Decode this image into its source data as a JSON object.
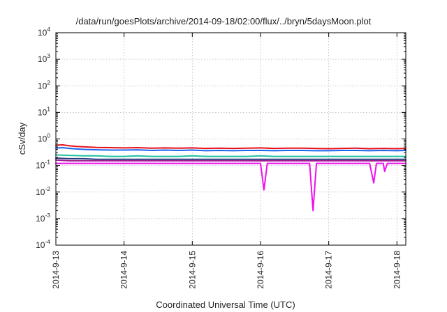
{
  "chart_data": {
    "type": "line",
    "title": "/data/run/goesPlots/archive/2014-09-18/02:00/flux/../bryn/5daysMoon.plot",
    "xlabel": "Coordinated Universal Time (UTC)",
    "ylabel": "cSv/day",
    "yscale": "log",
    "ylim": [
      0.0001,
      10000
    ],
    "xlim": [
      0,
      5.13
    ],
    "grid": true,
    "legend": "none",
    "y_ticks": [
      {
        "base": "10",
        "exp": "-4",
        "value": 0.0001
      },
      {
        "base": "10",
        "exp": "-3",
        "value": 0.001
      },
      {
        "base": "10",
        "exp": "-2",
        "value": 0.01
      },
      {
        "base": "10",
        "exp": "-1",
        "value": 0.1
      },
      {
        "base": "10",
        "exp": "0",
        "value": 1
      },
      {
        "base": "10",
        "exp": "1",
        "value": 10
      },
      {
        "base": "10",
        "exp": "2",
        "value": 100
      },
      {
        "base": "10",
        "exp": "3",
        "value": 1000
      },
      {
        "base": "10",
        "exp": "4",
        "value": 10000
      }
    ],
    "x_ticks": [
      {
        "label": "2014-9-13",
        "value": 0
      },
      {
        "label": "2014-9-14",
        "value": 1
      },
      {
        "label": "2014-9-15",
        "value": 2
      },
      {
        "label": "2014-9-16",
        "value": 3
      },
      {
        "label": "2014-9-17",
        "value": 4
      },
      {
        "label": "2014-9-18",
        "value": 5
      }
    ],
    "x_unit": "days since 2014-9-13 00:00 UTC",
    "series": [
      {
        "color": "#e8101a",
        "x": [
          0,
          0.1,
          0.2,
          0.3,
          0.45,
          0.6,
          0.8,
          1.0,
          1.2,
          1.4,
          1.6,
          1.8,
          2.0,
          2.2,
          2.4,
          2.6,
          2.8,
          3.0,
          3.2,
          3.4,
          3.6,
          3.8,
          4.0,
          4.2,
          4.4,
          4.6,
          4.8,
          5.0,
          5.13
        ],
        "y": [
          0.58,
          0.6,
          0.55,
          0.52,
          0.5,
          0.48,
          0.47,
          0.46,
          0.47,
          0.45,
          0.46,
          0.45,
          0.46,
          0.44,
          0.45,
          0.44,
          0.45,
          0.46,
          0.44,
          0.45,
          0.45,
          0.44,
          0.43,
          0.44,
          0.45,
          0.43,
          0.44,
          0.43,
          0.44
        ]
      },
      {
        "color": "#1a66f0",
        "x": [
          0,
          0.1,
          0.2,
          0.3,
          0.45,
          0.6,
          0.8,
          1.0,
          1.2,
          1.4,
          1.6,
          1.8,
          2.0,
          2.2,
          2.4,
          2.6,
          2.8,
          3.0,
          3.2,
          3.4,
          3.6,
          3.8,
          4.0,
          4.2,
          4.4,
          4.6,
          4.8,
          5.0,
          5.13
        ],
        "y": [
          0.45,
          0.47,
          0.44,
          0.42,
          0.4,
          0.39,
          0.38,
          0.38,
          0.39,
          0.37,
          0.38,
          0.37,
          0.38,
          0.36,
          0.37,
          0.36,
          0.37,
          0.37,
          0.36,
          0.37,
          0.37,
          0.36,
          0.36,
          0.37,
          0.37,
          0.36,
          0.37,
          0.36,
          0.37
        ]
      },
      {
        "color": "#22c0a0",
        "x": [
          0,
          0.2,
          0.4,
          0.6,
          0.8,
          1.0,
          1.2,
          1.4,
          1.6,
          1.8,
          2.0,
          2.2,
          2.4,
          2.6,
          2.8,
          3.0,
          3.2,
          3.4,
          3.6,
          3.8,
          4.0,
          4.2,
          4.4,
          4.6,
          4.8,
          5.0,
          5.13
        ],
        "y": [
          0.25,
          0.24,
          0.23,
          0.23,
          0.22,
          0.22,
          0.23,
          0.22,
          0.22,
          0.22,
          0.23,
          0.22,
          0.22,
          0.22,
          0.22,
          0.23,
          0.22,
          0.22,
          0.22,
          0.22,
          0.22,
          0.22,
          0.22,
          0.22,
          0.22,
          0.22,
          0.22
        ]
      },
      {
        "color": "#2a3a80",
        "x": [
          0,
          0.2,
          0.4,
          0.6,
          0.8,
          1.0,
          1.2,
          1.4,
          1.6,
          1.8,
          2.0,
          2.2,
          2.4,
          2.6,
          2.8,
          3.0,
          3.2,
          3.4,
          3.6,
          3.8,
          4.0,
          4.2,
          4.4,
          4.6,
          4.8,
          5.0,
          5.13
        ],
        "y": [
          0.19,
          0.18,
          0.18,
          0.17,
          0.17,
          0.17,
          0.17,
          0.17,
          0.17,
          0.17,
          0.17,
          0.17,
          0.17,
          0.17,
          0.17,
          0.17,
          0.17,
          0.17,
          0.17,
          0.17,
          0.17,
          0.17,
          0.17,
          0.17,
          0.17,
          0.17,
          0.17
        ]
      },
      {
        "color": "#a01a90",
        "x": [
          0,
          0.2,
          0.4,
          0.6,
          0.8,
          1.0,
          1.2,
          1.4,
          1.6,
          1.8,
          2.0,
          2.2,
          2.4,
          2.6,
          2.8,
          3.0,
          3.2,
          3.4,
          3.6,
          3.8,
          4.0,
          4.2,
          4.4,
          4.6,
          4.8,
          5.0,
          5.13
        ],
        "y": [
          0.16,
          0.15,
          0.15,
          0.15,
          0.15,
          0.15,
          0.15,
          0.15,
          0.15,
          0.15,
          0.15,
          0.15,
          0.15,
          0.15,
          0.15,
          0.15,
          0.15,
          0.15,
          0.15,
          0.15,
          0.15,
          0.15,
          0.15,
          0.15,
          0.15,
          0.15,
          0.15
        ]
      },
      {
        "color": "#ee10ee",
        "x": [
          0,
          0.2,
          0.4,
          0.6,
          0.8,
          1.0,
          1.2,
          1.4,
          1.6,
          1.8,
          2.0,
          2.2,
          2.4,
          2.6,
          2.8,
          3.0,
          3.05,
          3.1,
          3.15,
          3.4,
          3.6,
          3.72,
          3.77,
          3.82,
          4.0,
          4.2,
          4.4,
          4.6,
          4.66,
          4.7,
          4.75,
          4.8,
          4.82,
          4.86,
          5.0,
          5.13
        ],
        "y": [
          0.12,
          0.12,
          0.12,
          0.12,
          0.12,
          0.12,
          0.12,
          0.12,
          0.12,
          0.12,
          0.12,
          0.12,
          0.12,
          0.12,
          0.12,
          0.12,
          0.012,
          0.12,
          0.12,
          0.12,
          0.12,
          0.12,
          0.002,
          0.12,
          0.12,
          0.12,
          0.12,
          0.12,
          0.022,
          0.12,
          0.12,
          0.12,
          0.06,
          0.12,
          0.12,
          0.12
        ]
      }
    ]
  }
}
